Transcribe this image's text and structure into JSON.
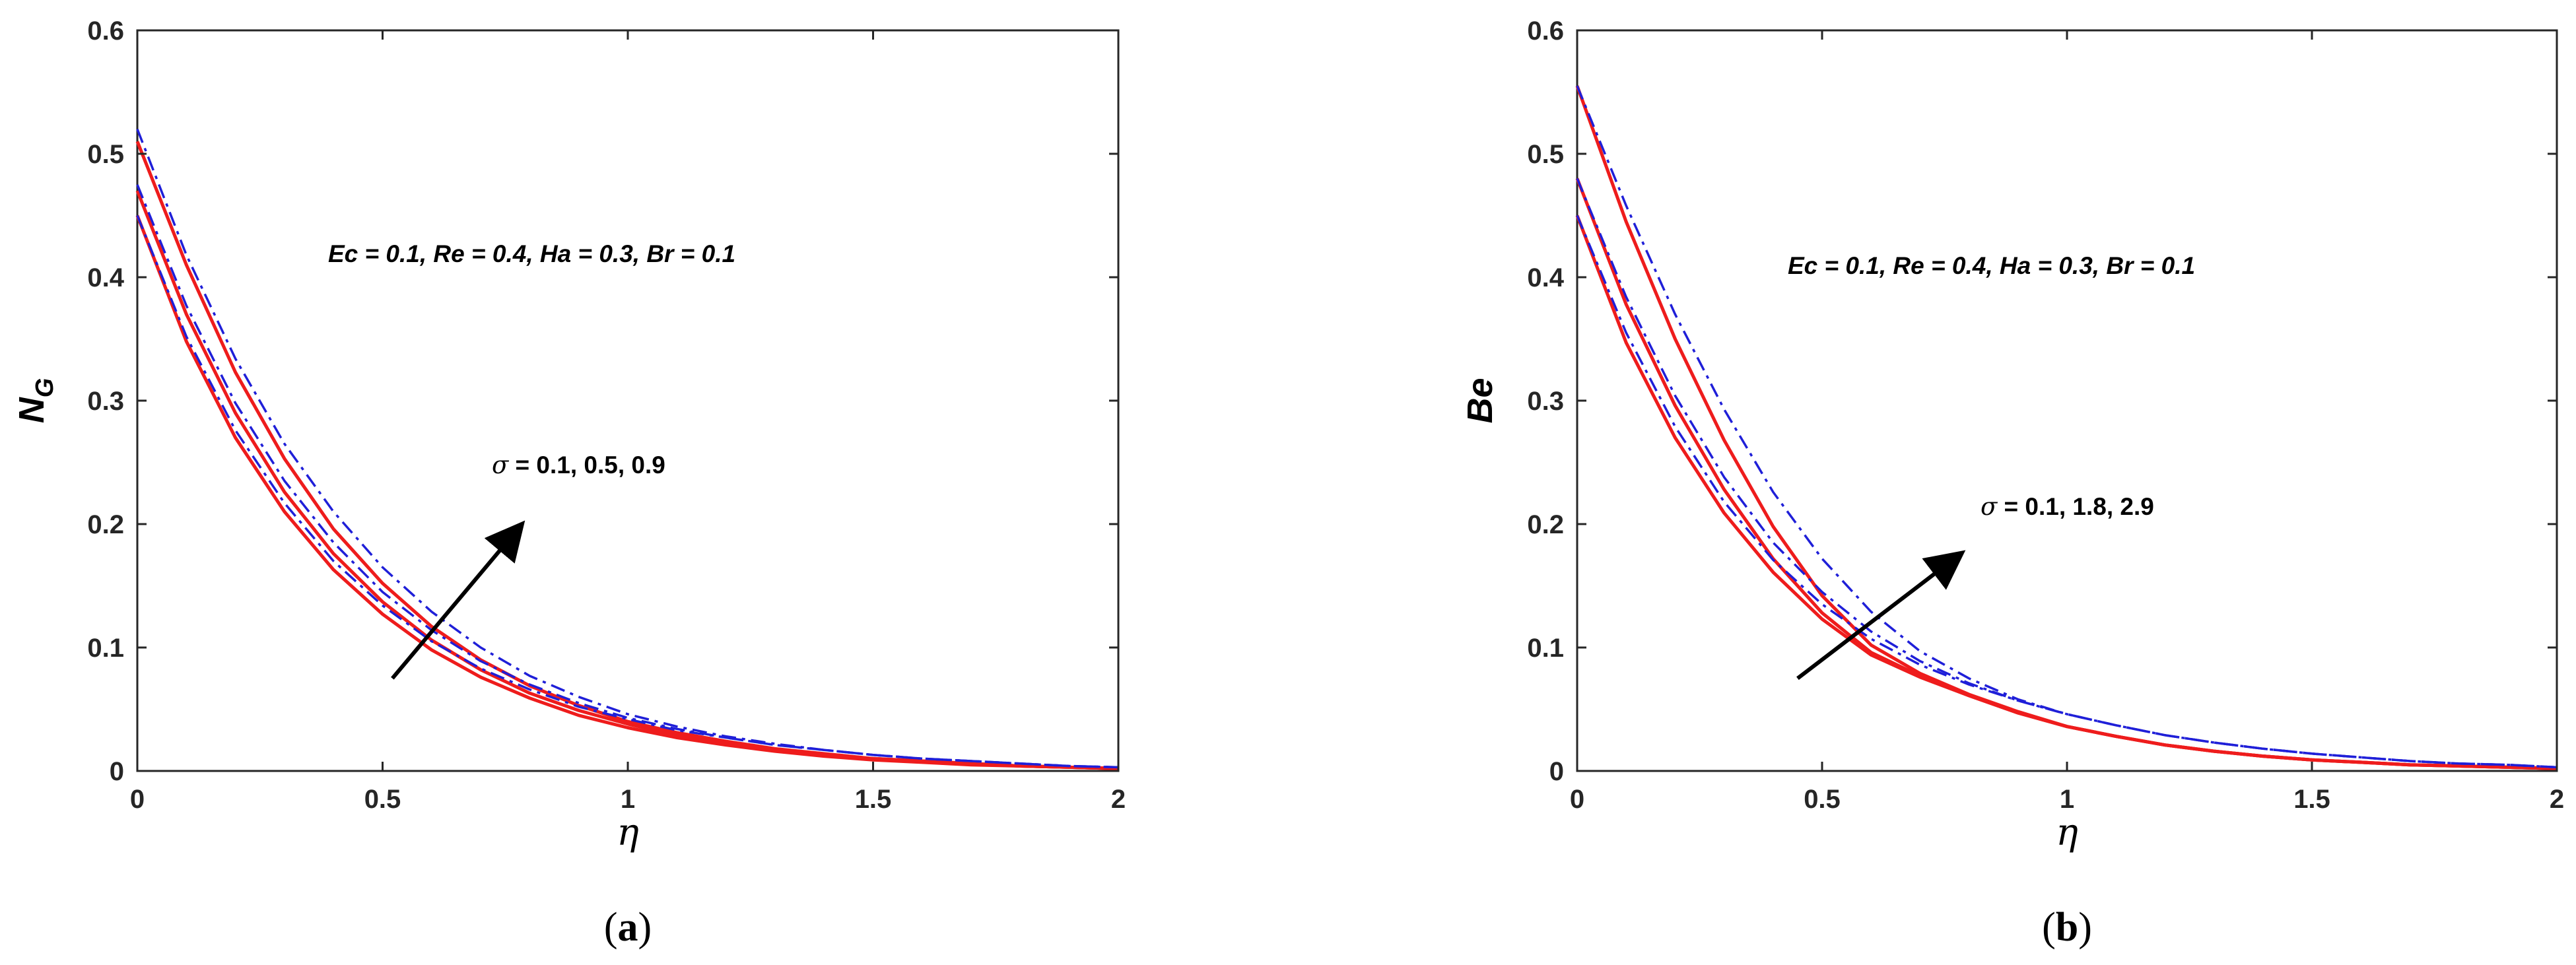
{
  "chart_data": [
    {
      "type": "line",
      "panel": "a",
      "caption_letter": "a",
      "ylabel_main": "N",
      "ylabel_sub": "G",
      "xlabel": "η",
      "xlim": [
        0,
        2
      ],
      "ylim": [
        0,
        0.6
      ],
      "xticks": [
        "0",
        "0.5",
        "1",
        "1.5",
        "2"
      ],
      "yticks": [
        "0",
        "0.1",
        "0.2",
        "0.3",
        "0.4",
        "0.5",
        "0.6"
      ],
      "grid": false,
      "annotation": "Ec = 0.1, Re = 0.4, Ha = 0.3, Br = 0.1",
      "param_symbol": "σ",
      "param_values": " = 0.1, 0.5, 0.9",
      "arrow_from": [
        0.52,
        0.075
      ],
      "arrow_to": [
        0.78,
        0.198
      ],
      "colors": {
        "red": "#ee1c1c",
        "blue": "#1f1fd8"
      },
      "x": [
        0,
        0.1,
        0.2,
        0.3,
        0.4,
        0.5,
        0.6,
        0.7,
        0.8,
        0.9,
        1.0,
        1.1,
        1.2,
        1.3,
        1.4,
        1.5,
        1.6,
        1.7,
        1.8,
        1.9,
        2.0
      ],
      "series": [
        {
          "color": "red",
          "style": "solid",
          "values": [
            0.45,
            0.348,
            0.27,
            0.21,
            0.163,
            0.127,
            0.098,
            0.076,
            0.059,
            0.045,
            0.035,
            0.027,
            0.021,
            0.016,
            0.012,
            0.009,
            0.007,
            0.005,
            0.004,
            0.003,
            0.002
          ]
        },
        {
          "color": "red",
          "style": "solid",
          "values": [
            0.47,
            0.37,
            0.29,
            0.226,
            0.176,
            0.137,
            0.106,
            0.082,
            0.063,
            0.049,
            0.038,
            0.029,
            0.022,
            0.017,
            0.013,
            0.01,
            0.008,
            0.006,
            0.004,
            0.003,
            0.002
          ]
        },
        {
          "color": "red",
          "style": "solid",
          "values": [
            0.51,
            0.41,
            0.323,
            0.253,
            0.196,
            0.152,
            0.117,
            0.09,
            0.069,
            0.053,
            0.04,
            0.031,
            0.024,
            0.018,
            0.014,
            0.01,
            0.008,
            0.006,
            0.004,
            0.003,
            0.002
          ]
        },
        {
          "color": "blue",
          "style": "dashdot",
          "values": [
            0.45,
            0.352,
            0.276,
            0.217,
            0.17,
            0.134,
            0.105,
            0.083,
            0.066,
            0.052,
            0.042,
            0.033,
            0.027,
            0.021,
            0.017,
            0.013,
            0.01,
            0.008,
            0.006,
            0.004,
            0.003
          ]
        },
        {
          "color": "blue",
          "style": "dashdot",
          "values": [
            0.475,
            0.377,
            0.298,
            0.235,
            0.185,
            0.145,
            0.114,
            0.089,
            0.07,
            0.055,
            0.043,
            0.034,
            0.027,
            0.021,
            0.017,
            0.013,
            0.01,
            0.008,
            0.006,
            0.004,
            0.003
          ]
        },
        {
          "color": "blue",
          "style": "dashdot",
          "values": [
            0.52,
            0.418,
            0.334,
            0.265,
            0.21,
            0.165,
            0.129,
            0.1,
            0.077,
            0.06,
            0.046,
            0.036,
            0.028,
            0.022,
            0.017,
            0.013,
            0.01,
            0.008,
            0.006,
            0.004,
            0.003
          ]
        }
      ]
    },
    {
      "type": "line",
      "panel": "b",
      "caption_letter": "b",
      "ylabel_main": "Be",
      "ylabel_sub": "",
      "xlabel": "η",
      "xlim": [
        0,
        2
      ],
      "ylim": [
        0,
        0.6
      ],
      "xticks": [
        "0",
        "0.5",
        "1",
        "1.5",
        "2"
      ],
      "yticks": [
        "0",
        "0.1",
        "0.2",
        "0.3",
        "0.4",
        "0.5",
        "0.6"
      ],
      "grid": false,
      "annotation": "Ec = 0.1, Re = 0.4, Ha = 0.3, Br = 0.1",
      "param_symbol": "σ",
      "param_values": " = 0.1, 1.8, 2.9",
      "arrow_from": [
        0.45,
        0.075
      ],
      "arrow_to": [
        0.78,
        0.175
      ],
      "colors": {
        "red": "#ee1c1c",
        "blue": "#1f1fd8"
      },
      "x": [
        0,
        0.1,
        0.2,
        0.3,
        0.4,
        0.5,
        0.6,
        0.7,
        0.8,
        0.9,
        1.0,
        1.1,
        1.2,
        1.3,
        1.4,
        1.5,
        1.6,
        1.7,
        1.8,
        1.9,
        2.0
      ],
      "series": [
        {
          "color": "red",
          "style": "solid",
          "values": [
            0.45,
            0.347,
            0.27,
            0.209,
            0.161,
            0.123,
            0.094,
            0.076,
            0.061,
            0.047,
            0.036,
            0.028,
            0.021,
            0.016,
            0.012,
            0.009,
            0.007,
            0.005,
            0.004,
            0.003,
            0.002
          ]
        },
        {
          "color": "red",
          "style": "solid",
          "values": [
            0.48,
            0.378,
            0.296,
            0.228,
            0.172,
            0.128,
            0.096,
            0.077,
            0.061,
            0.047,
            0.036,
            0.028,
            0.021,
            0.016,
            0.012,
            0.009,
            0.007,
            0.005,
            0.004,
            0.003,
            0.002
          ]
        },
        {
          "color": "red",
          "style": "solid",
          "values": [
            0.555,
            0.445,
            0.35,
            0.268,
            0.198,
            0.142,
            0.102,
            0.079,
            0.062,
            0.048,
            0.036,
            0.028,
            0.021,
            0.016,
            0.012,
            0.009,
            0.007,
            0.005,
            0.004,
            0.003,
            0.002
          ]
        },
        {
          "color": "blue",
          "style": "dashdot",
          "values": [
            0.45,
            0.355,
            0.279,
            0.218,
            0.171,
            0.135,
            0.107,
            0.086,
            0.07,
            0.057,
            0.046,
            0.037,
            0.029,
            0.023,
            0.018,
            0.014,
            0.011,
            0.008,
            0.006,
            0.005,
            0.003
          ]
        },
        {
          "color": "blue",
          "style": "dashdot",
          "values": [
            0.48,
            0.384,
            0.304,
            0.238,
            0.185,
            0.145,
            0.113,
            0.089,
            0.071,
            0.057,
            0.046,
            0.037,
            0.029,
            0.023,
            0.018,
            0.014,
            0.011,
            0.008,
            0.006,
            0.005,
            0.003
          ]
        },
        {
          "color": "blue",
          "style": "dashdot",
          "values": [
            0.555,
            0.458,
            0.37,
            0.293,
            0.226,
            0.172,
            0.129,
            0.097,
            0.075,
            0.058,
            0.046,
            0.037,
            0.029,
            0.023,
            0.018,
            0.014,
            0.011,
            0.008,
            0.006,
            0.005,
            0.003
          ]
        }
      ]
    }
  ]
}
